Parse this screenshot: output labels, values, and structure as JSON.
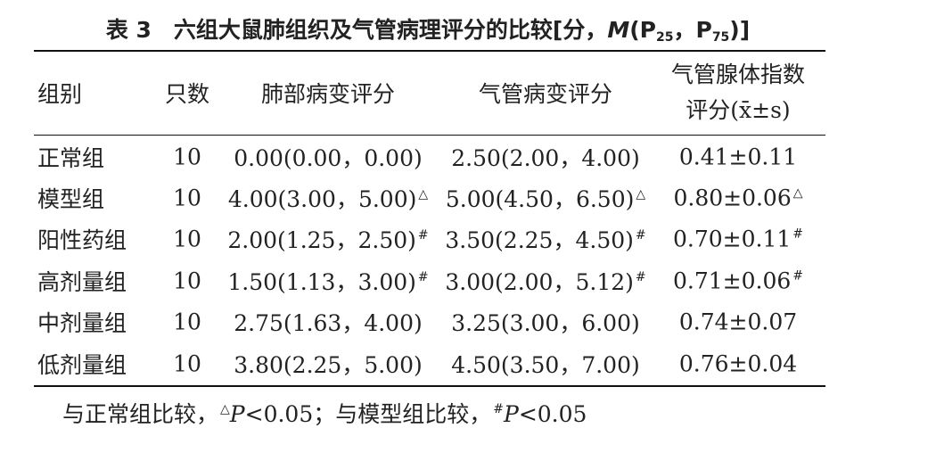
{
  "title": [
    {
      "text": "表 3　六组大鼠肺组织及气管病理评分的比较[分，"
    },
    {
      "italic": "M"
    },
    {
      "text": "(P"
    },
    {
      "sub": "25"
    },
    {
      "text": "，P"
    },
    {
      "sub": "75"
    },
    {
      "text": ")]"
    }
  ],
  "table": {
    "header": [
      "组别",
      "只数",
      "肺部病变评分",
      "气管病变评分",
      [
        "气管腺体指数",
        "评分(x̄±s)"
      ]
    ],
    "rows": [
      [
        "正常组",
        10,
        "0.00(0.00，0.00)",
        "2.50(2.00，4.00)",
        "0.41±0.11"
      ],
      [
        "模型组",
        10,
        {
          "text": "4.00(3.00，5.00)",
          "sup": "△"
        },
        {
          "text": "5.00(4.50，6.50)",
          "sup": "△"
        },
        {
          "text": "0.80±0.06",
          "sup": "△"
        }
      ],
      [
        "阳性药组",
        10,
        {
          "text": "2.00(1.25，2.50)",
          "sup": "#"
        },
        {
          "text": "3.50(2.25，4.50)",
          "sup": "#"
        },
        {
          "text": "0.70±0.11",
          "sup": "#"
        }
      ],
      [
        "高剂量组",
        10,
        {
          "text": "1.50(1.13，3.00)",
          "sup": "#"
        },
        {
          "text": "3.00(2.00，5.12)",
          "sup": "#"
        },
        {
          "text": "0.71±0.06",
          "sup": "#"
        }
      ],
      [
        "中剂量组",
        10,
        "2.75(1.63，4.00)",
        "3.25(3.00，6.00)",
        "0.74±0.07"
      ],
      [
        "低剂量组",
        10,
        "3.80(2.25，5.00)",
        "4.50(3.50，7.00)",
        "0.76±0.04"
      ]
    ]
  },
  "footnote": [
    {
      "text": "与正常组比较，"
    },
    {
      "sup": "△"
    },
    {
      "italic": "P"
    },
    {
      "text": "<0.05；与模型组比较，"
    },
    {
      "sup": "#"
    },
    {
      "italic": "P"
    },
    {
      "text": "<0.05"
    }
  ]
}
